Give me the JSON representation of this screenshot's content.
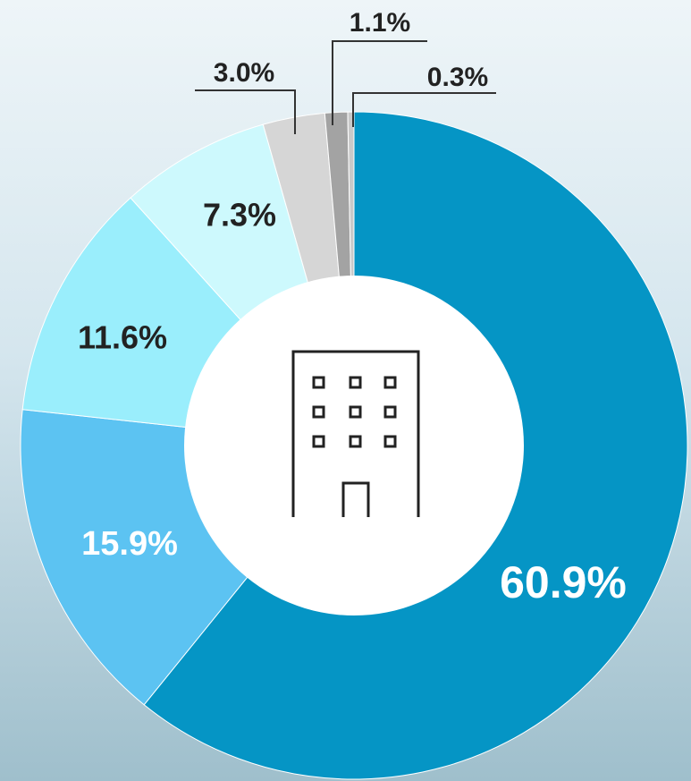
{
  "chart_data": {
    "type": "pie",
    "categories": [
      null,
      null,
      null,
      null,
      null,
      null,
      null
    ],
    "values": [
      60.9,
      15.9,
      11.6,
      7.3,
      3.0,
      1.1,
      0.3
    ],
    "value_labels": [
      "60.9%",
      "15.9%",
      "11.6%",
      "7.3%",
      "3.0%",
      "1.1%",
      "0.3%"
    ],
    "colors": [
      "#0595c5",
      "#5cc3f2",
      "#9aeefc",
      "#cdf9fd",
      "#d6d6d6",
      "#a3a3a3",
      "#c9c9c9"
    ]
  }
}
